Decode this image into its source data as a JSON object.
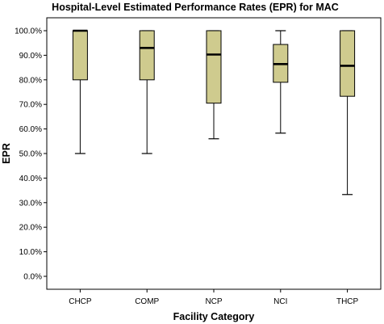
{
  "chart_data": {
    "type": "boxplot",
    "title": "Hospital-Level Estimated Performance Rates (EPR) for MAC",
    "xlabel": "Facility Category",
    "ylabel": "EPR",
    "ylim": [
      0,
      100
    ],
    "y_ticks": [
      "0.0%",
      "10.0%",
      "20.0%",
      "30.0%",
      "40.0%",
      "50.0%",
      "60.0%",
      "70.0%",
      "80.0%",
      "90.0%",
      "100.0%"
    ],
    "y_tick_values": [
      0,
      10,
      20,
      30,
      40,
      50,
      60,
      70,
      80,
      90,
      100
    ],
    "categories": [
      "CHCP",
      "COMP",
      "NCP",
      "NCI",
      "THCP"
    ],
    "boxes": [
      {
        "category": "CHCP",
        "min": 50,
        "q1": 80,
        "median": 100,
        "q3": 100,
        "max": 100
      },
      {
        "category": "COMP",
        "min": 50,
        "q1": 80,
        "median": 93,
        "q3": 100,
        "max": 100
      },
      {
        "category": "NCP",
        "min": 56,
        "q1": 70.5,
        "median": 90.3,
        "q3": 100,
        "max": 100
      },
      {
        "category": "NCI",
        "min": 58.3,
        "q1": 79,
        "median": 86.4,
        "q3": 94.4,
        "max": 100
      },
      {
        "category": "THCP",
        "min": 33.3,
        "q1": 73.3,
        "median": 85.7,
        "q3": 100,
        "max": 100
      }
    ],
    "grid": false,
    "colors": {
      "box_fill": "#CFCB8E",
      "stroke": "#000000"
    }
  }
}
